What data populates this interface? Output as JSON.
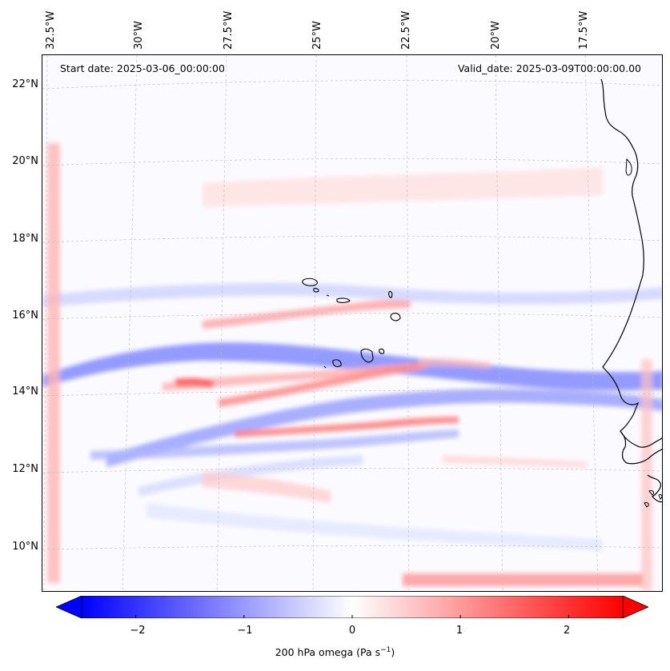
{
  "header": {
    "start_date": "Start date: 2025-03-06_00:00:00",
    "valid_date": "Valid_date: 2025-03-09T00:00:00.00"
  },
  "axes": {
    "lon_labels": [
      "32.5°W",
      "30°W",
      "27.5°W",
      "25°W",
      "22.5°W",
      "20°W",
      "17.5°W"
    ],
    "lat_labels": [
      "22°N",
      "20°N",
      "18°N",
      "16°N",
      "14°N",
      "12°N",
      "10°N"
    ]
  },
  "colorbar": {
    "ticks": [
      "−2",
      "−1",
      "0",
      "1",
      "2"
    ],
    "title_prefix": "200 hPa omega (Pa s",
    "title_exp": "−1",
    "title_suffix": ")",
    "vmin": -2.5,
    "vmax": 2.5,
    "neg_color": "#0000ff",
    "pos_color": "#ff0000"
  },
  "colors": {
    "coastline": "#000000",
    "gridline": "#bbbbbb"
  }
}
